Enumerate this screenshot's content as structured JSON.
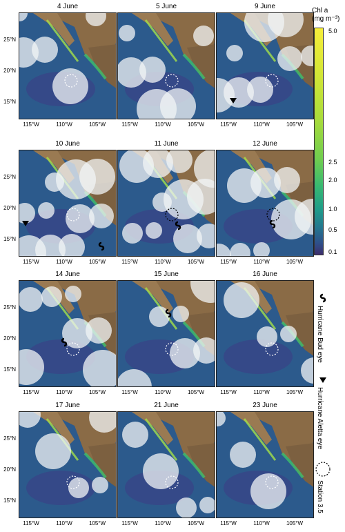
{
  "colorbar": {
    "title_line1": "Chl a",
    "title_line2": "(mg m⁻³)",
    "ticks": [
      "5.0",
      "2.5",
      "2.0",
      "1.0",
      "0.5",
      "0.1"
    ]
  },
  "legend": {
    "bud": "Hurricane Bud eye",
    "aletta": "Hurricane Aletta eye",
    "station": "Station 3.5"
  },
  "axes": {
    "yticks": [
      "25°N",
      "20°N",
      "15°N"
    ],
    "xticks": [
      "115°W",
      "110°W",
      "105°W"
    ]
  },
  "panels": [
    {
      "date": "4 June"
    },
    {
      "date": "5 June"
    },
    {
      "date": "9 June"
    },
    {
      "date": "10 June"
    },
    {
      "date": "11 June"
    },
    {
      "date": "12 June"
    },
    {
      "date": "14 June"
    },
    {
      "date": "15 June"
    },
    {
      "date": "16 June"
    },
    {
      "date": "17 June"
    },
    {
      "date": "21 June"
    },
    {
      "date": "23 June"
    }
  ]
}
